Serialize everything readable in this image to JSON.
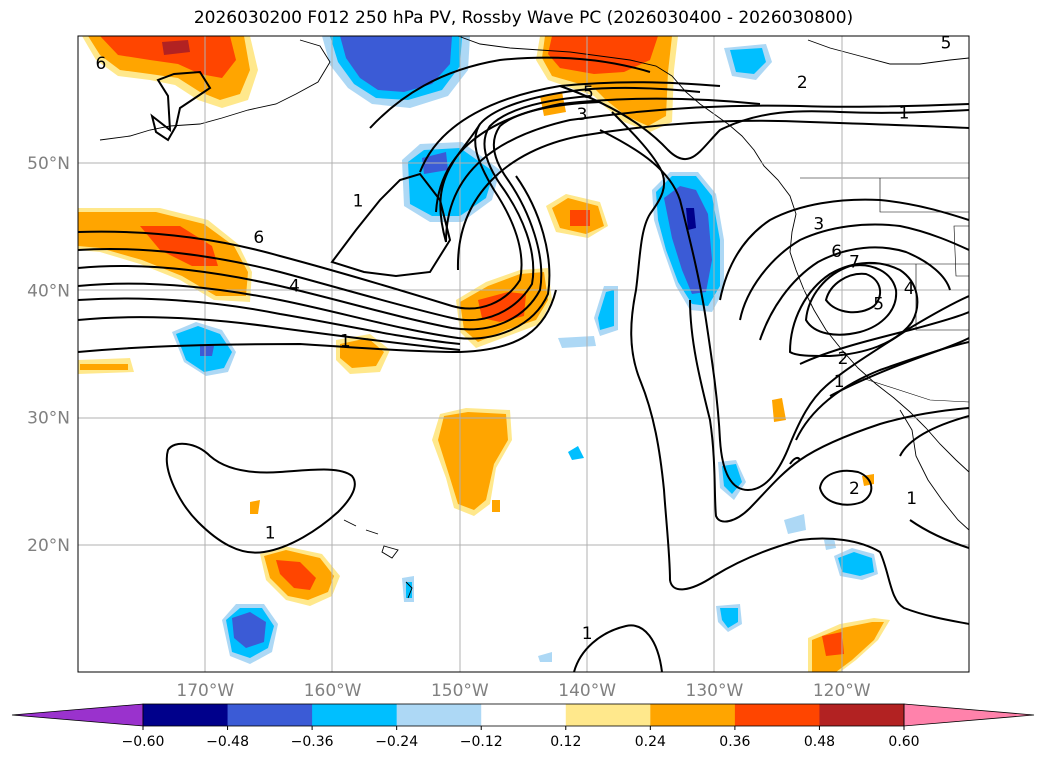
{
  "title": "2026030200 F012 250 hPa PV, Rossby Wave PC (2026030400 - 2026030800)",
  "map": {
    "projection": "lat-lon",
    "extent": {
      "lon": [
        -180,
        -110
      ],
      "lat": [
        10,
        60
      ]
    },
    "lat_ticks": [
      {
        "value": 20,
        "label": "20°N"
      },
      {
        "value": 30,
        "label": "30°N"
      },
      {
        "value": 40,
        "label": "40°N"
      },
      {
        "value": 50,
        "label": "50°N"
      }
    ],
    "lon_ticks": [
      {
        "value": -170,
        "label": "170°W"
      },
      {
        "value": -160,
        "label": "160°W"
      },
      {
        "value": -150,
        "label": "150°W"
      },
      {
        "value": -140,
        "label": "140°W"
      },
      {
        "value": -130,
        "label": "130°W"
      },
      {
        "value": -120,
        "label": "120°W"
      }
    ],
    "grid": true,
    "contour_labels": [
      {
        "text": "6",
        "lon": -178.2,
        "lat": 57.8
      },
      {
        "text": "5",
        "lon": -139.9,
        "lat": 55.5
      },
      {
        "text": "3",
        "lon": -140.4,
        "lat": 53.8
      },
      {
        "text": "2",
        "lon": -123.1,
        "lat": 56.3
      },
      {
        "text": "1",
        "lon": -115.1,
        "lat": 53.9
      },
      {
        "text": "5",
        "lon": -111.8,
        "lat": 59.4
      },
      {
        "text": "1",
        "lon": -158.0,
        "lat": 47.0
      },
      {
        "text": "6",
        "lon": -165.8,
        "lat": 44.1
      },
      {
        "text": "4",
        "lon": -163.0,
        "lat": 40.3
      },
      {
        "text": "1",
        "lon": -159.0,
        "lat": 36.0
      },
      {
        "text": "3",
        "lon": -121.8,
        "lat": 45.2
      },
      {
        "text": "6",
        "lon": -120.4,
        "lat": 43.0
      },
      {
        "text": "7",
        "lon": -119.0,
        "lat": 42.2
      },
      {
        "text": "5",
        "lon": -117.1,
        "lat": 38.9
      },
      {
        "text": "4",
        "lon": -114.7,
        "lat": 40.1
      },
      {
        "text": "2",
        "lon": -119.9,
        "lat": 34.6
      },
      {
        "text": "1",
        "lon": -120.2,
        "lat": 32.8
      },
      {
        "text": "1",
        "lon": -164.9,
        "lat": 20.9
      },
      {
        "text": "2",
        "lon": -119.0,
        "lat": 24.4
      },
      {
        "text": "1",
        "lon": -114.5,
        "lat": 23.6
      },
      {
        "text": "1",
        "lon": -140.0,
        "lat": 13.0
      }
    ]
  },
  "colorbar": {
    "ticks": [
      "−0.60",
      "−0.48",
      "−0.36",
      "−0.24",
      "−0.12",
      "0.12",
      "0.24",
      "0.36",
      "0.48",
      "0.60"
    ],
    "colors": [
      "#9a32cd",
      "#00008b",
      "#3b5bd6",
      "#00bfff",
      "#add8f5",
      "#ffffff",
      "#ffe88c",
      "#ffa500",
      "#ff4500",
      "#b22222",
      "#ff82ab"
    ]
  },
  "shading_colors": {
    "neg_strong": "#00008b",
    "neg_med": "#3b5bd6",
    "neg": "#00bfff",
    "neg_weak": "#add8f5",
    "pos_weak": "#ffe88c",
    "pos": "#ffa500",
    "pos_med": "#ff4500",
    "pos_strong": "#b22222"
  }
}
